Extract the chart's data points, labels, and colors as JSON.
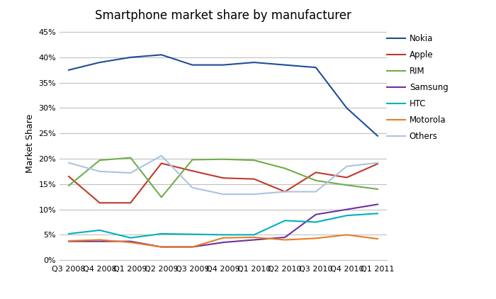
{
  "title": "Smartphone market share by manufacturer",
  "xlabel": "",
  "ylabel": "Market Share",
  "categories": [
    "Q3 2008",
    "Q4 2008",
    "Q1 2009",
    "Q2 2009",
    "Q3 2009",
    "Q4 2009",
    "Q1 2010",
    "Q2 2010",
    "Q3 2010",
    "Q4 2010",
    "Q1 2011"
  ],
  "series": {
    "Nokia": [
      0.375,
      0.39,
      0.4,
      0.405,
      0.385,
      0.385,
      0.39,
      0.385,
      0.38,
      0.3,
      0.245
    ],
    "Apple": [
      0.165,
      0.113,
      0.113,
      0.191,
      0.176,
      0.162,
      0.16,
      0.135,
      0.173,
      0.163,
      0.19
    ],
    "RIM": [
      0.147,
      0.197,
      0.202,
      0.124,
      0.198,
      0.199,
      0.197,
      0.181,
      0.157,
      0.148,
      0.14
    ],
    "Samsung": [
      0.037,
      0.037,
      0.037,
      0.026,
      0.026,
      0.035,
      0.04,
      0.045,
      0.09,
      0.1,
      0.11
    ],
    "HTC": [
      0.052,
      0.059,
      0.044,
      0.052,
      0.051,
      0.05,
      0.05,
      0.078,
      0.075,
      0.088,
      0.092
    ],
    "Motorola": [
      0.038,
      0.04,
      0.035,
      0.026,
      0.026,
      0.044,
      0.045,
      0.04,
      0.043,
      0.05,
      0.042
    ],
    "Others": [
      0.192,
      0.175,
      0.172,
      0.206,
      0.143,
      0.13,
      0.13,
      0.135,
      0.135,
      0.185,
      0.192
    ]
  },
  "colors": {
    "Nokia": "#1F4E97",
    "Apple": "#C0392B",
    "RIM": "#70AD47",
    "Samsung": "#7030A0",
    "HTC": "#00B0C0",
    "Motorola": "#E67E22",
    "Others": "#A9C4E0"
  },
  "ylim": [
    0,
    0.46
  ],
  "yticks": [
    0.0,
    0.05,
    0.1,
    0.15,
    0.2,
    0.25,
    0.3,
    0.35,
    0.4,
    0.45
  ],
  "background_color": "#FFFFFF",
  "grid_color": "#C0C0C0",
  "figsize": [
    7.0,
    4.22
  ],
  "dpi": 100
}
